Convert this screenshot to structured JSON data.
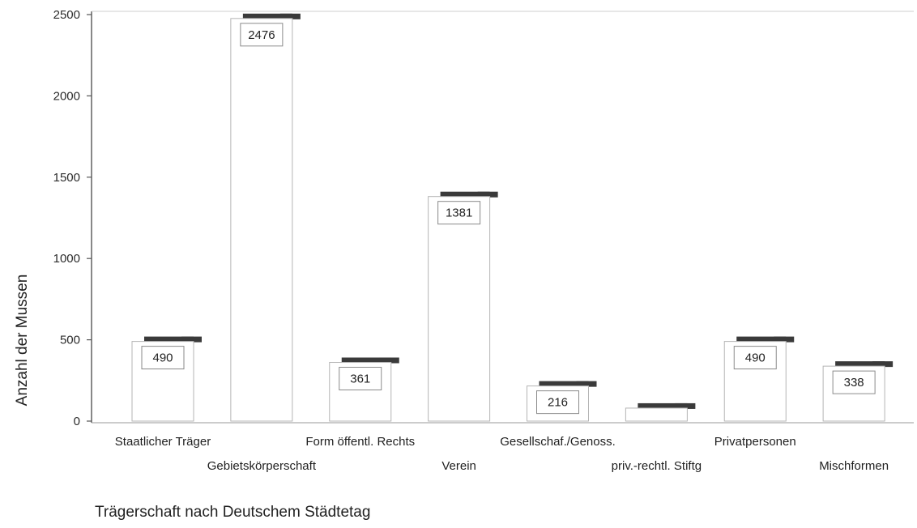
{
  "chart_data": {
    "type": "bar",
    "title": "",
    "xlabel": "Trägerschaft nach Deutschem Städtetag",
    "ylabel": "Anzahl der Mussen",
    "ylim": [
      0,
      2500
    ],
    "yticks": [
      0,
      500,
      1000,
      1500,
      2000,
      2500
    ],
    "categories": [
      "Staatlicher Träger",
      "Gebietskörperschaft",
      "Form öffentl. Rechts",
      "Verein",
      "Gesellschaf./Genoss.",
      "priv.-rechtl. Stiftg",
      "Privatpersonen",
      "Mischformen"
    ],
    "values": [
      490,
      2476,
      361,
      1381,
      216,
      80,
      490,
      338
    ],
    "data_labels": [
      "490",
      "2476",
      "361",
      "1381",
      "216",
      "",
      "490",
      "338"
    ],
    "grid": false,
    "legend": "none",
    "colors": {
      "bar_fill": "#ffffff",
      "bar_stroke": "#b5b5b5",
      "bar_shadow": "#3a3a3a",
      "axis": "#555555"
    }
  }
}
